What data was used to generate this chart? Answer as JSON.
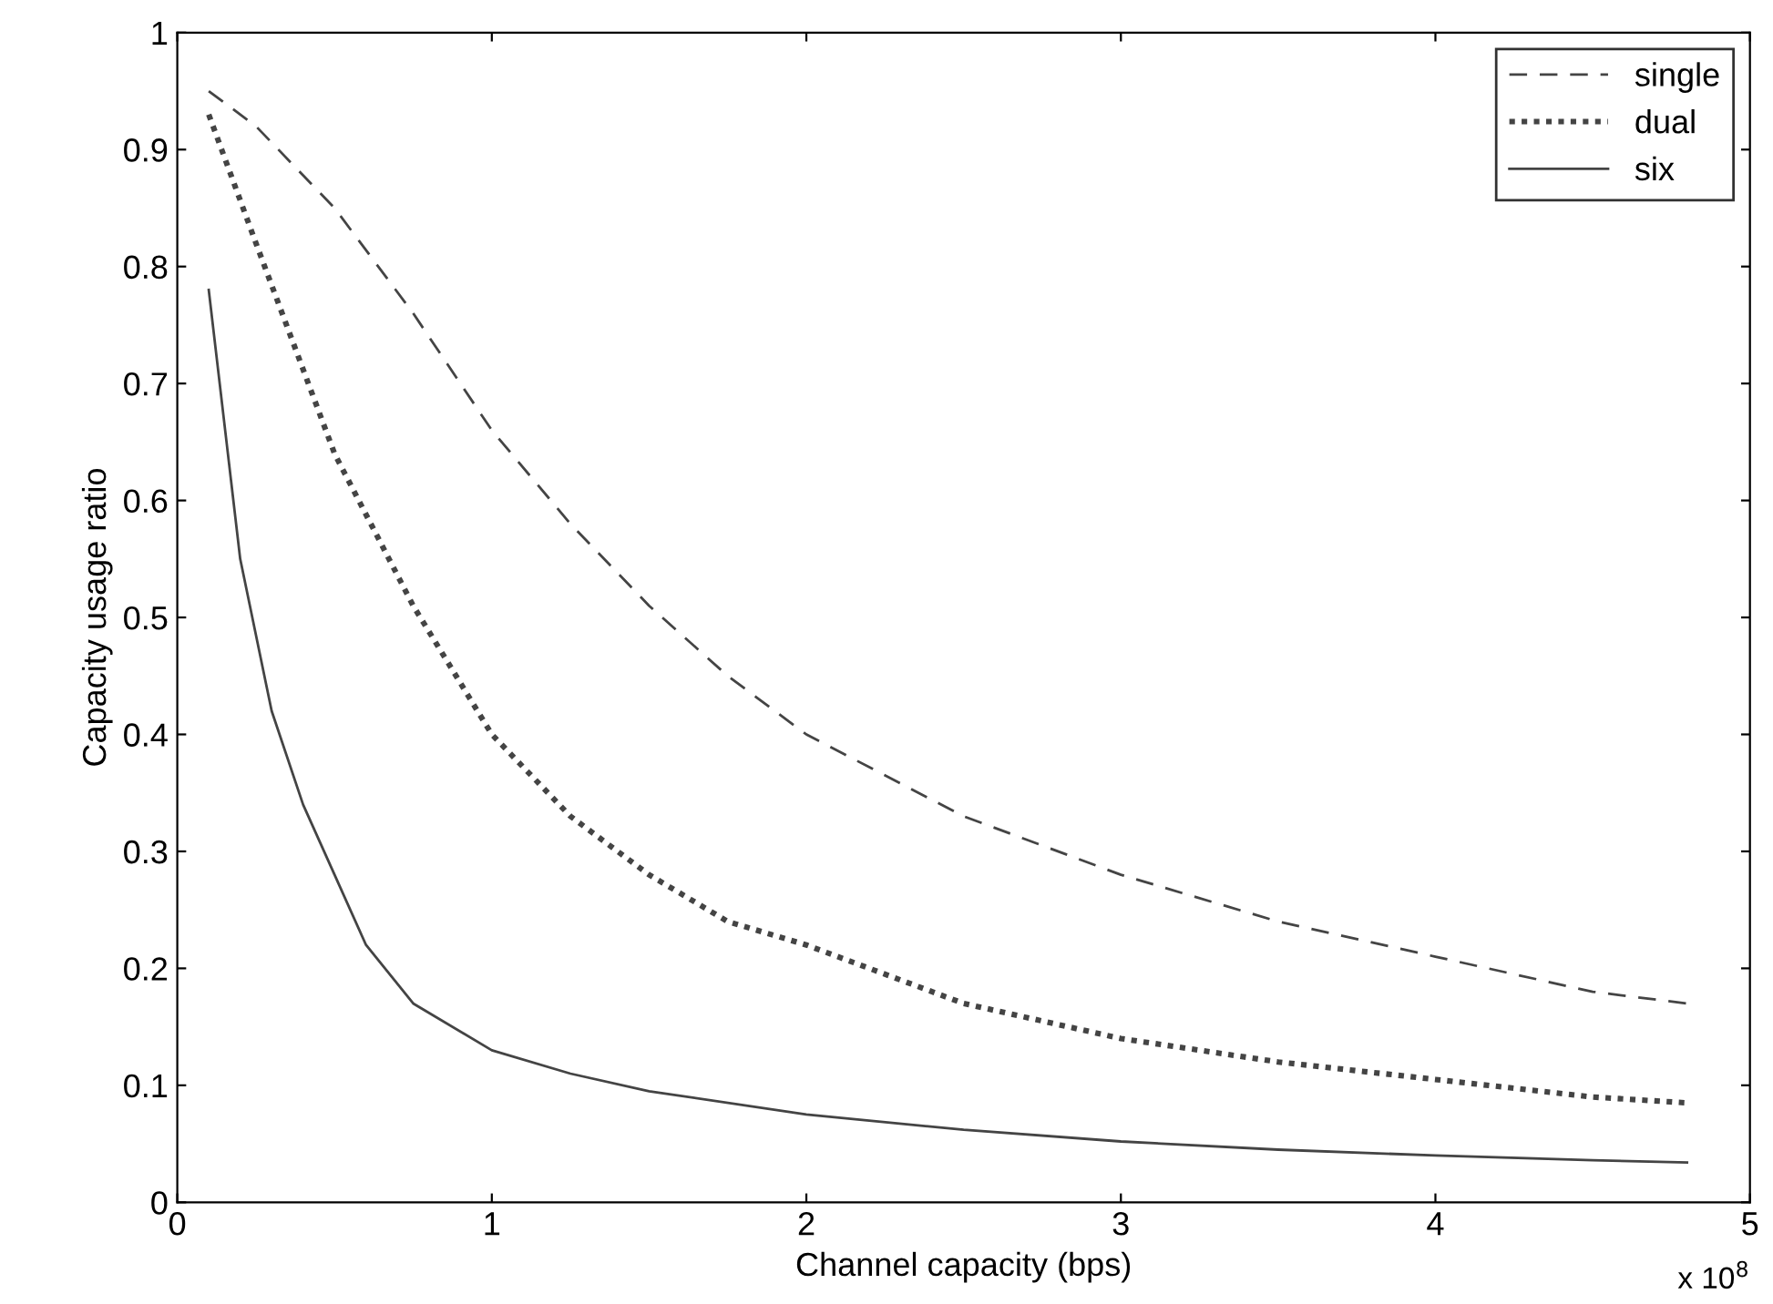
{
  "chart_data": {
    "type": "line",
    "xlabel": "Channel capacity (bps)",
    "ylabel": "Capacity usage ratio",
    "annotations": [
      "x 10$^{8}$"
    ],
    "xlim": [
      0,
      5
    ],
    "xticks": [
      0,
      1,
      2,
      3,
      4,
      5
    ],
    "ylim": [
      0,
      1
    ],
    "yticks": [
      0,
      0.1,
      0.2,
      0.3,
      0.4,
      0.5,
      0.6,
      0.7,
      0.8,
      0.9,
      1
    ],
    "grid": false,
    "legend": "top right",
    "series": [
      {
        "name": "single",
        "color": "#444444",
        "line_style": "dashed",
        "x": [
          0.1,
          0.25,
          0.5,
          0.75,
          1.0,
          1.25,
          1.5,
          1.75,
          2.0,
          2.5,
          3.0,
          3.5,
          4.0,
          4.5,
          4.8
        ],
        "values": [
          0.95,
          0.92,
          0.85,
          0.76,
          0.66,
          0.58,
          0.51,
          0.45,
          0.4,
          0.33,
          0.28,
          0.24,
          0.21,
          0.18,
          0.17
        ]
      },
      {
        "name": "dual",
        "color": "#444444",
        "line_style": "dotted",
        "x": [
          0.1,
          0.25,
          0.5,
          0.75,
          1.0,
          1.25,
          1.5,
          1.75,
          2.0,
          2.5,
          3.0,
          3.5,
          4.0,
          4.5,
          4.8
        ],
        "values": [
          0.93,
          0.82,
          0.64,
          0.51,
          0.4,
          0.33,
          0.28,
          0.24,
          0.22,
          0.17,
          0.14,
          0.12,
          0.105,
          0.09,
          0.085
        ]
      },
      {
        "name": "six",
        "color": "#444444",
        "line_style": "solid",
        "x": [
          0.1,
          0.2,
          0.3,
          0.4,
          0.5,
          0.6,
          0.75,
          1.0,
          1.25,
          1.5,
          2.0,
          2.5,
          3.0,
          3.5,
          4.0,
          4.5,
          4.8
        ],
        "values": [
          0.78,
          0.55,
          0.42,
          0.34,
          0.28,
          0.22,
          0.17,
          0.13,
          0.11,
          0.095,
          0.075,
          0.062,
          0.052,
          0.045,
          0.04,
          0.036,
          0.034
        ]
      }
    ]
  }
}
